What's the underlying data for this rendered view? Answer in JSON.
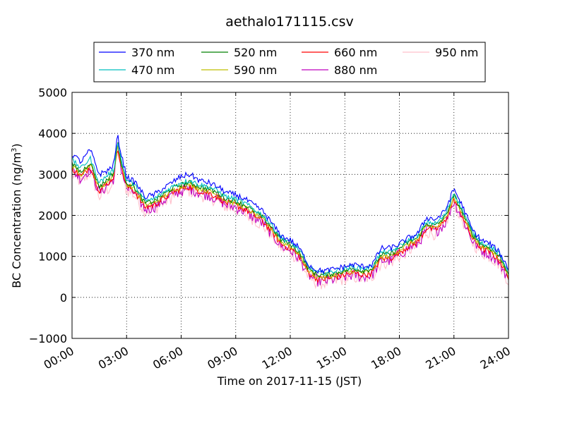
{
  "chart_data": {
    "type": "line",
    "title": "aethalo171115.csv",
    "xlabel": "Time on 2017-11-15 (JST)",
    "ylabel_main": "BC Concentration (ng/m",
    "ylabel_sup": "3",
    "ylabel_close": ")",
    "ylim": [
      -1000,
      5000
    ],
    "xlim_hours": [
      0,
      24
    ],
    "xticks": [
      {
        "label": "00:00",
        "hour": 0
      },
      {
        "label": "03:00",
        "hour": 3
      },
      {
        "label": "06:00",
        "hour": 6
      },
      {
        "label": "09:00",
        "hour": 9
      },
      {
        "label": "12:00",
        "hour": 12
      },
      {
        "label": "15:00",
        "hour": 15
      },
      {
        "label": "18:00",
        "hour": 18
      },
      {
        "label": "21:00",
        "hour": 21
      },
      {
        "label": "24:00",
        "hour": 24
      }
    ],
    "yticks": [
      {
        "label": "5000",
        "value": 5000
      },
      {
        "label": "4000",
        "value": 4000
      },
      {
        "label": "3000",
        "value": 3000
      },
      {
        "label": "2000",
        "value": 2000
      },
      {
        "label": "1000",
        "value": 1000
      },
      {
        "label": "0",
        "value": 0
      },
      {
        "label": "−1000",
        "value": -1000
      }
    ],
    "grid": true,
    "legend_placement": "top, above plot",
    "base_profile_x": [
      0,
      0.5,
      1.0,
      1.5,
      2.0,
      2.3,
      2.5,
      2.7,
      3.0,
      3.3,
      3.5,
      4.0,
      4.5,
      5.0,
      5.5,
      6.0,
      6.5,
      7.0,
      7.5,
      8.0,
      8.5,
      9.0,
      9.5,
      10.0,
      10.5,
      11.0,
      11.5,
      12.0,
      12.5,
      13.0,
      13.5,
      14.0,
      14.5,
      15.0,
      15.5,
      16.0,
      16.5,
      17.0,
      17.5,
      18.0,
      18.5,
      19.0,
      19.5,
      20.0,
      20.5,
      21.0,
      21.5,
      22.0,
      22.5,
      23.0,
      23.5,
      24.0
    ],
    "series": [
      {
        "name": "370 nm",
        "color": "#0000ff",
        "offset": 300,
        "jitter": 70,
        "y": [
          3500,
          3300,
          3600,
          3000,
          3100,
          3250,
          3950,
          3500,
          2950,
          2850,
          2800,
          2450,
          2500,
          2650,
          2800,
          2950,
          3000,
          2850,
          2800,
          2700,
          2550,
          2500,
          2400,
          2250,
          2100,
          1800,
          1500,
          1400,
          1200,
          800,
          650,
          650,
          700,
          750,
          800,
          750,
          800,
          1200,
          1200,
          1300,
          1450,
          1550,
          1950,
          1900,
          2100,
          2650,
          2200,
          1650,
          1400,
          1300,
          1100,
          700
        ]
      },
      {
        "name": "470 nm",
        "color": "#00bfbf",
        "offset": 150,
        "jitter": 60,
        "y": [
          3350,
          3150,
          3400,
          2800,
          3000,
          3100,
          3850,
          3350,
          2850,
          2800,
          2700,
          2350,
          2400,
          2550,
          2700,
          2800,
          2850,
          2750,
          2700,
          2600,
          2450,
          2400,
          2300,
          2150,
          2000,
          1750,
          1450,
          1350,
          1150,
          750,
          600,
          600,
          650,
          700,
          750,
          700,
          750,
          1100,
          1100,
          1250,
          1400,
          1500,
          1850,
          1800,
          2000,
          2550,
          2100,
          1600,
          1350,
          1250,
          1050,
          650
        ]
      },
      {
        "name": "520 nm",
        "color": "#008000",
        "offset": 70,
        "jitter": 60,
        "y": [
          3250,
          3050,
          3300,
          2700,
          2900,
          3050,
          3800,
          3300,
          2800,
          2750,
          2650,
          2300,
          2350,
          2500,
          2650,
          2750,
          2800,
          2700,
          2650,
          2550,
          2400,
          2350,
          2250,
          2100,
          1950,
          1700,
          1400,
          1300,
          1100,
          700,
          550,
          550,
          600,
          650,
          700,
          650,
          700,
          1050,
          1050,
          1200,
          1350,
          1450,
          1800,
          1750,
          1950,
          2500,
          2050,
          1550,
          1300,
          1200,
          1000,
          600
        ]
      },
      {
        "name": "590 nm",
        "color": "#bfbf00",
        "offset": 20,
        "jitter": 60,
        "y": [
          3200,
          3000,
          3250,
          2650,
          2850,
          3000,
          3750,
          3250,
          2750,
          2700,
          2600,
          2250,
          2300,
          2450,
          2600,
          2700,
          2750,
          2650,
          2600,
          2500,
          2350,
          2300,
          2200,
          2050,
          1900,
          1650,
          1350,
          1250,
          1050,
          650,
          500,
          500,
          550,
          600,
          650,
          600,
          650,
          1000,
          1000,
          1150,
          1300,
          1400,
          1750,
          1700,
          1900,
          2450,
          2000,
          1500,
          1250,
          1150,
          950,
          550
        ]
      },
      {
        "name": "660 nm",
        "color": "#ff0000",
        "offset": 0,
        "jitter": 80,
        "y": [
          3150,
          2950,
          3200,
          2600,
          2800,
          2950,
          3700,
          3200,
          2700,
          2650,
          2550,
          2200,
          2250,
          2400,
          2550,
          2650,
          2700,
          2600,
          2550,
          2450,
          2300,
          2250,
          2150,
          2000,
          1850,
          1600,
          1300,
          1200,
          1000,
          600,
          450,
          450,
          500,
          550,
          600,
          550,
          600,
          950,
          950,
          1100,
          1250,
          1350,
          1700,
          1650,
          1850,
          2400,
          1950,
          1450,
          1200,
          1100,
          900,
          500
        ]
      },
      {
        "name": "880 nm",
        "color": "#bf00bf",
        "offset": -50,
        "jitter": 140,
        "y": [
          3100,
          2900,
          3150,
          2550,
          2750,
          2900,
          3700,
          3150,
          2650,
          2600,
          2500,
          2150,
          2200,
          2350,
          2500,
          2600,
          2650,
          2550,
          2500,
          2400,
          2250,
          2200,
          2100,
          1950,
          1800,
          1550,
          1250,
          1150,
          950,
          550,
          400,
          400,
          450,
          500,
          550,
          500,
          550,
          900,
          900,
          1050,
          1200,
          1300,
          1650,
          1600,
          1800,
          2350,
          1900,
          1400,
          1150,
          1050,
          850,
          450
        ]
      },
      {
        "name": "950 nm",
        "color": "#ffc0cb",
        "offset": -100,
        "jitter": 160,
        "y": [
          3000,
          2800,
          3050,
          2450,
          2650,
          2800,
          3650,
          3100,
          2600,
          2550,
          2450,
          2100,
          2150,
          2300,
          2450,
          2550,
          2600,
          2500,
          2450,
          2350,
          2200,
          2150,
          2050,
          1900,
          1750,
          1500,
          1200,
          1100,
          900,
          500,
          350,
          350,
          400,
          450,
          500,
          450,
          500,
          850,
          850,
          1000,
          1150,
          1250,
          1600,
          1550,
          1750,
          2300,
          1850,
          1350,
          1100,
          1000,
          800,
          400
        ]
      }
    ]
  }
}
